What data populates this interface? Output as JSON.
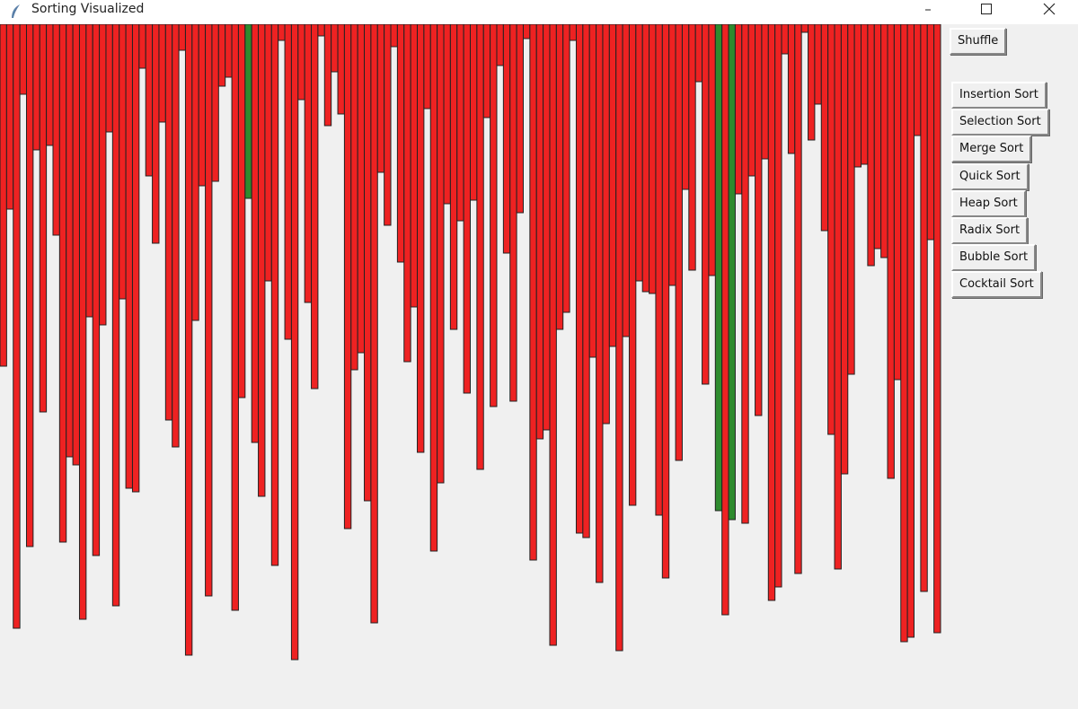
{
  "window": {
    "title": "Sorting Visualized"
  },
  "buttons": {
    "shuffle": "Shuffle",
    "sorts": [
      "Insertion Sort",
      "Selection Sort",
      "Merge Sort",
      "Quick Sort",
      "Heap Sort",
      "Radix Sort",
      "Bubble Sort",
      "Cocktail Sort"
    ]
  },
  "bars": {
    "color": "#ee2222",
    "highlight_color": "#2e8b2e",
    "highlighted": [
      37,
      108,
      110
    ],
    "values": [
      381,
      206,
      673,
      78,
      582,
      140,
      432,
      135,
      235,
      577,
      482,
      491,
      663,
      326,
      592,
      335,
      120,
      648,
      306,
      517,
      521,
      49,
      169,
      244,
      109,
      441,
      471,
      29,
      703,
      330,
      180,
      637,
      175,
      69,
      59,
      653,
      416,
      194,
      466,
      526,
      286,
      603,
      18,
      351,
      708,
      84,
      310,
      406,
      13,
      113,
      53,
      100,
      562,
      385,
      366,
      531,
      667,
      165,
      224,
      25,
      265,
      376,
      315,
      477,
      94,
      587,
      511,
      200,
      340,
      219,
      411,
      196,
      496,
      104,
      426,
      46,
      255,
      420,
      210,
      16,
      597,
      462,
      452,
      692,
      340,
      321,
      18,
      567,
      572,
      371,
      622,
      445,
      359,
      698,
      348,
      536,
      286,
      298,
      300,
      547,
      617,
      291,
      486,
      184,
      274,
      64,
      401,
      280,
      542,
      658,
      552,
      189,
      556,
      169,
      436,
      150,
      642,
      627,
      33,
      144,
      612,
      9,
      129,
      89,
      230,
      457,
      607,
      501,
      390,
      159,
      156,
      269,
      250,
      260,
      506,
      396,
      688,
      683,
      124,
      632,
      240,
      678
    ]
  }
}
